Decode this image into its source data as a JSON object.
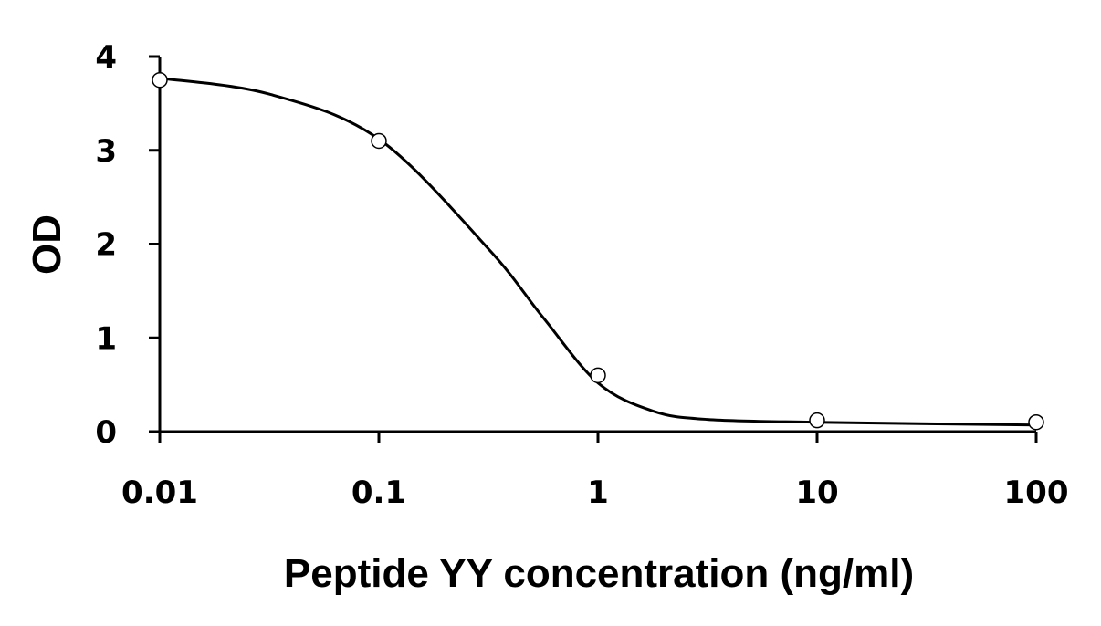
{
  "chart_data": {
    "type": "scatter",
    "title": "",
    "xlabel": "Peptide YY concentration (ng/ml)",
    "ylabel": "OD",
    "x_scale": "log",
    "xlim": [
      0.01,
      100
    ],
    "ylim": [
      0,
      4
    ],
    "x_ticks": [
      "0.01",
      "0.1",
      "1",
      "10",
      "100"
    ],
    "y_ticks": [
      "0",
      "1",
      "2",
      "3",
      "4"
    ],
    "grid": false,
    "legend": "none",
    "points": [
      {
        "x": 0.01,
        "y": 3.75
      },
      {
        "x": 0.1,
        "y": 3.1
      },
      {
        "x": 1,
        "y": 0.6
      },
      {
        "x": 10,
        "y": 0.12
      },
      {
        "x": 100,
        "y": 0.1
      }
    ],
    "fit_curve": {
      "type": "smooth",
      "points": [
        {
          "x": 0.01,
          "y": 3.77
        },
        {
          "x": 0.0316,
          "y": 3.6
        },
        {
          "x": 0.1,
          "y": 3.12
        },
        {
          "x": 0.316,
          "y": 1.95
        },
        {
          "x": 0.56,
          "y": 1.22
        },
        {
          "x": 1,
          "y": 0.52
        },
        {
          "x": 1.78,
          "y": 0.22
        },
        {
          "x": 3.16,
          "y": 0.13
        },
        {
          "x": 10,
          "y": 0.1
        },
        {
          "x": 100,
          "y": 0.07
        }
      ]
    },
    "colors": {
      "line": "#000000",
      "marker_fill": "#ffffff",
      "background": "#ffffff"
    }
  }
}
